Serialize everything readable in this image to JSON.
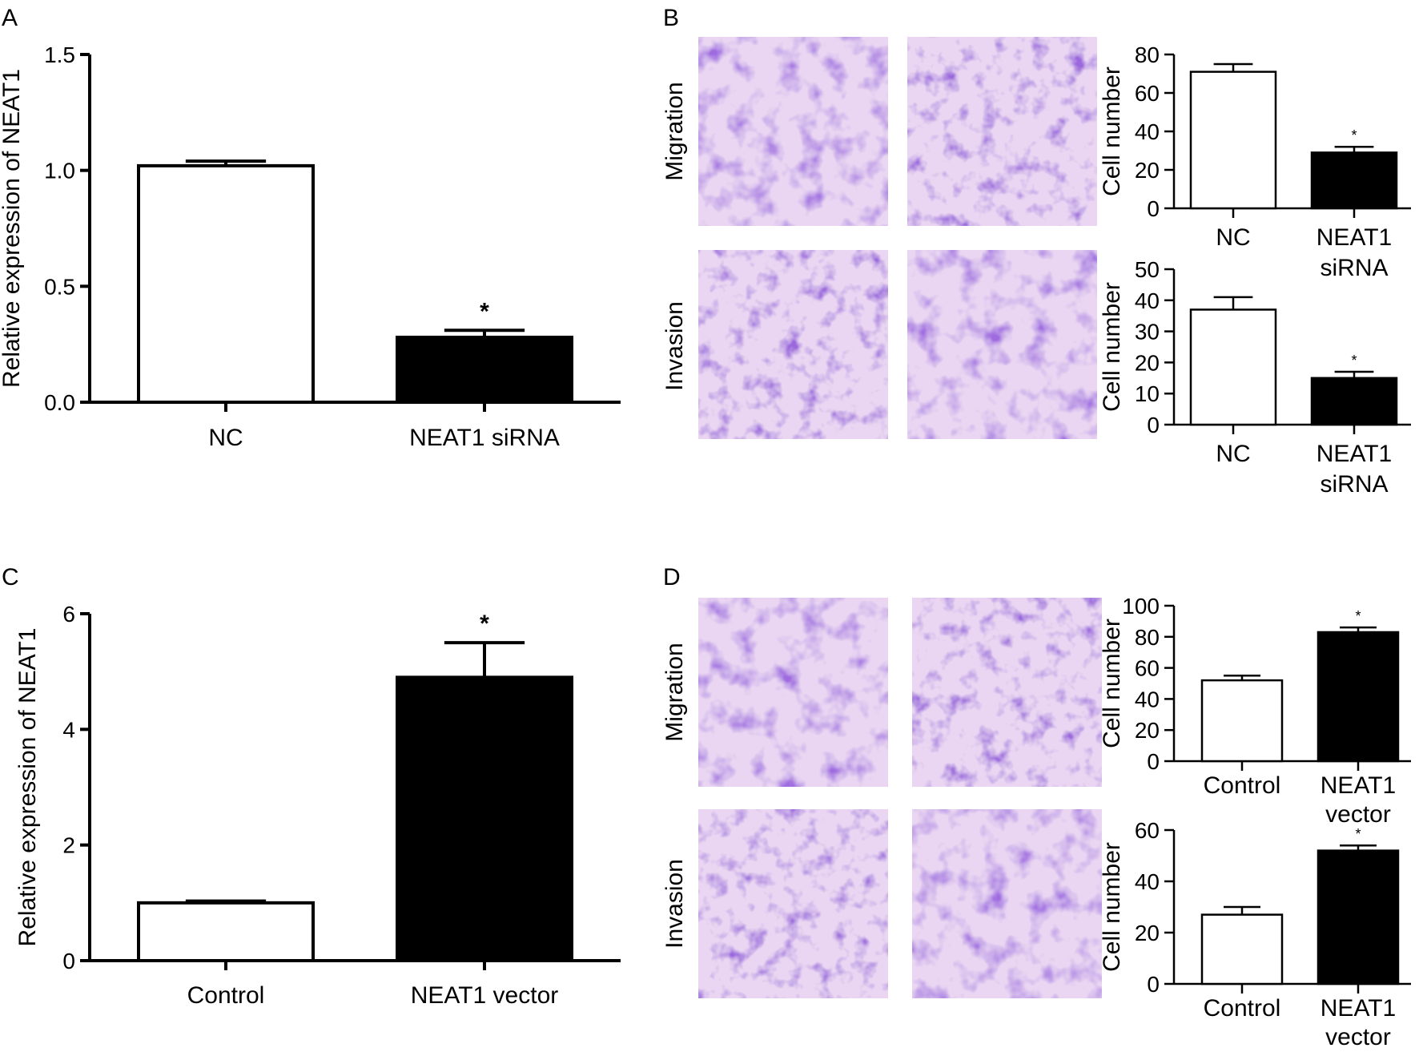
{
  "panels": {
    "A": "A",
    "B": "B",
    "C": "C",
    "D": "D"
  },
  "micrograph_rows": {
    "B": [
      "Migration",
      "Invasion"
    ],
    "D": [
      "Migration",
      "Invasion"
    ]
  },
  "chart_data": [
    {
      "id": "A",
      "type": "bar",
      "categories": [
        "NC",
        "NEAT1 siRNA"
      ],
      "values": [
        1.02,
        0.28
      ],
      "errors": [
        0.02,
        0.03
      ],
      "significance": [
        "",
        "*"
      ],
      "ylabel": "Relative expression of NEAT1",
      "ylim": [
        0,
        1.5
      ],
      "yticks": [
        "0.0",
        "0.5",
        "1.0",
        "1.5"
      ],
      "colors": [
        "#ffffff",
        "#000000"
      ]
    },
    {
      "id": "B-migration",
      "type": "bar",
      "categories": [
        "NC",
        "NEAT1\nsiRNA"
      ],
      "values": [
        71,
        29
      ],
      "errors": [
        4,
        3
      ],
      "significance": [
        "",
        "*"
      ],
      "ylabel": "Cell number",
      "ylim": [
        0,
        80
      ],
      "yticks": [
        "0",
        "20",
        "40",
        "60",
        "80"
      ],
      "colors": [
        "#ffffff",
        "#000000"
      ]
    },
    {
      "id": "B-invasion",
      "type": "bar",
      "categories": [
        "NC",
        "NEAT1\nsiRNA"
      ],
      "values": [
        37,
        15
      ],
      "errors": [
        4,
        2
      ],
      "significance": [
        "",
        "*"
      ],
      "ylabel": "Cell number",
      "ylim": [
        0,
        50
      ],
      "yticks": [
        "0",
        "10",
        "20",
        "30",
        "40",
        "50"
      ],
      "colors": [
        "#ffffff",
        "#000000"
      ]
    },
    {
      "id": "C",
      "type": "bar",
      "categories": [
        "Control",
        "NEAT1 vector"
      ],
      "values": [
        1.0,
        4.9
      ],
      "errors": [
        0.03,
        0.6
      ],
      "significance": [
        "",
        "*"
      ],
      "ylabel": "Relative expression of NEAT1",
      "ylim": [
        0,
        6
      ],
      "yticks": [
        "0",
        "2",
        "4",
        "6"
      ],
      "colors": [
        "#ffffff",
        "#000000"
      ]
    },
    {
      "id": "D-migration",
      "type": "bar",
      "categories": [
        "Control",
        "NEAT1\nvector"
      ],
      "values": [
        52,
        83
      ],
      "errors": [
        3,
        3
      ],
      "significance": [
        "",
        "*"
      ],
      "ylabel": "Cell number",
      "ylim": [
        0,
        100
      ],
      "yticks": [
        "0",
        "20",
        "40",
        "60",
        "80",
        "100"
      ],
      "colors": [
        "#ffffff",
        "#000000"
      ]
    },
    {
      "id": "D-invasion",
      "type": "bar",
      "categories": [
        "Control",
        "NEAT1\nvector"
      ],
      "values": [
        27,
        52
      ],
      "errors": [
        3,
        2
      ],
      "significance": [
        "",
        "*"
      ],
      "ylabel": "Cell number",
      "ylim": [
        0,
        60
      ],
      "yticks": [
        "0",
        "20",
        "40",
        "60"
      ],
      "colors": [
        "#ffffff",
        "#000000"
      ]
    }
  ]
}
